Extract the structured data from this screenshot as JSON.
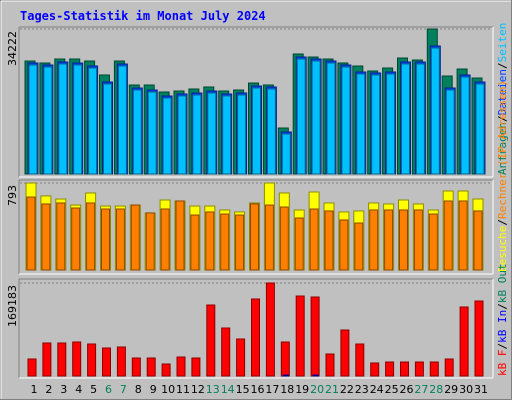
{
  "chart_data": [
    {
      "type": "bar",
      "title": "Tages-Statistik im Monat July 2024",
      "ylim": [
        0,
        34222
      ],
      "yticks": [
        34222
      ],
      "series": [
        {
          "name": "Anfragen",
          "color": "#00805c",
          "values": [
            26668,
            26196,
            27140,
            27140,
            26668,
            23364,
            26668,
            21004,
            21004,
            19352,
            19588,
            20060,
            20532,
            19588,
            19824,
            21476,
            21004,
            10856,
            28320,
            27612,
            27140,
            26196,
            25488,
            24308,
            25016,
            27376,
            26904,
            34222,
            23128,
            24780,
            22656
          ]
        },
        {
          "name": "Dateien",
          "color": "#0040ff",
          "values": [
            26196,
            25724,
            26432,
            26196,
            25488,
            21712,
            25960,
            20296,
            19824,
            18408,
            18880,
            19116,
            19588,
            18880,
            19116,
            20768,
            20532,
            9912,
            27612,
            27140,
            26668,
            25724,
            24072,
            23836,
            24072,
            26432,
            26432,
            30208,
            20296,
            23364,
            21712
          ]
        },
        {
          "name": "Seiten",
          "color": "#00c0ff",
          "values": [
            25724,
            25252,
            25960,
            25724,
            25016,
            21240,
            25488,
            19824,
            19352,
            17936,
            18408,
            18644,
            19116,
            18408,
            18644,
            20296,
            20060,
            9440,
            27140,
            26668,
            26196,
            25252,
            23600,
            23364,
            23600,
            25960,
            25960,
            29736,
            19824,
            22892,
            21240
          ]
        }
      ],
      "legend_separator": "/"
    },
    {
      "type": "bar",
      "ylim": [
        0,
        793
      ],
      "yticks": [
        793
      ],
      "series": [
        {
          "name": "Besuche",
          "color": "#ffff00",
          "values": [
            793,
            675,
            647,
            592,
            702,
            583,
            583,
            592,
            520,
            638,
            629,
            583,
            583,
            547,
            529,
            611,
            793,
            702,
            547,
            711,
            611,
            529,
            538,
            611,
            602,
            638,
            602,
            547,
            720,
            720,
            647
          ]
        },
        {
          "name": "Rechner (IP-Adressen)",
          "color": "#ff8000",
          "values": [
            665,
            602,
            611,
            565,
            611,
            556,
            556,
            592,
            520,
            556,
            629,
            501,
            529,
            510,
            501,
            602,
            592,
            574,
            474,
            556,
            538,
            456,
            428,
            547,
            547,
            547,
            547,
            510,
            629,
            629,
            538
          ]
        }
      ],
      "legend_separator": "/"
    },
    {
      "type": "bar",
      "ylim": [
        0,
        169183
      ],
      "yticks": [
        169183
      ],
      "categories": [
        "1",
        "2",
        "3",
        "4",
        "5",
        "6",
        "7",
        "8",
        "9",
        "10",
        "11",
        "12",
        "13",
        "14",
        "15",
        "16",
        "17",
        "18",
        "19",
        "20",
        "21",
        "22",
        "23",
        "24",
        "25",
        "26",
        "27",
        "28",
        "29",
        "30",
        "31"
      ],
      "highlighted_indices": [
        5,
        6,
        12,
        13,
        19,
        20,
        26,
        27
      ],
      "highlight_color": "#00805c",
      "series": [
        {
          "name": "kB F",
          "color": "#ff0000",
          "values": [
            30923,
            60027,
            60027,
            61846,
            58208,
            50932,
            52751,
            32742,
            32742,
            21828,
            34561,
            32742,
            129149,
            87312,
            67303,
            140063,
            169183,
            61846,
            145520,
            143701,
            40018,
            83674,
            58208,
            23647,
            25466,
            25466,
            25466,
            25466,
            30923,
            125511,
            136425
          ]
        },
        {
          "name": "kB In",
          "color": "#0000ff",
          "values": [
            0,
            0,
            0,
            0,
            0,
            0,
            0,
            0,
            0,
            0,
            0,
            0,
            0,
            0,
            0,
            0,
            0,
            1800,
            0,
            1800,
            0,
            0,
            0,
            0,
            0,
            0,
            0,
            0,
            0,
            0,
            0
          ]
        },
        {
          "name": "kB Out",
          "color": "#00805c",
          "values": [
            0,
            0,
            0,
            0,
            0,
            0,
            0,
            0,
            0,
            0,
            0,
            0,
            0,
            0,
            0,
            0,
            0,
            0,
            0,
            0,
            0,
            0,
            0,
            0,
            0,
            0,
            0,
            0,
            0,
            0,
            0
          ]
        }
      ],
      "legend_separator": "/"
    }
  ]
}
